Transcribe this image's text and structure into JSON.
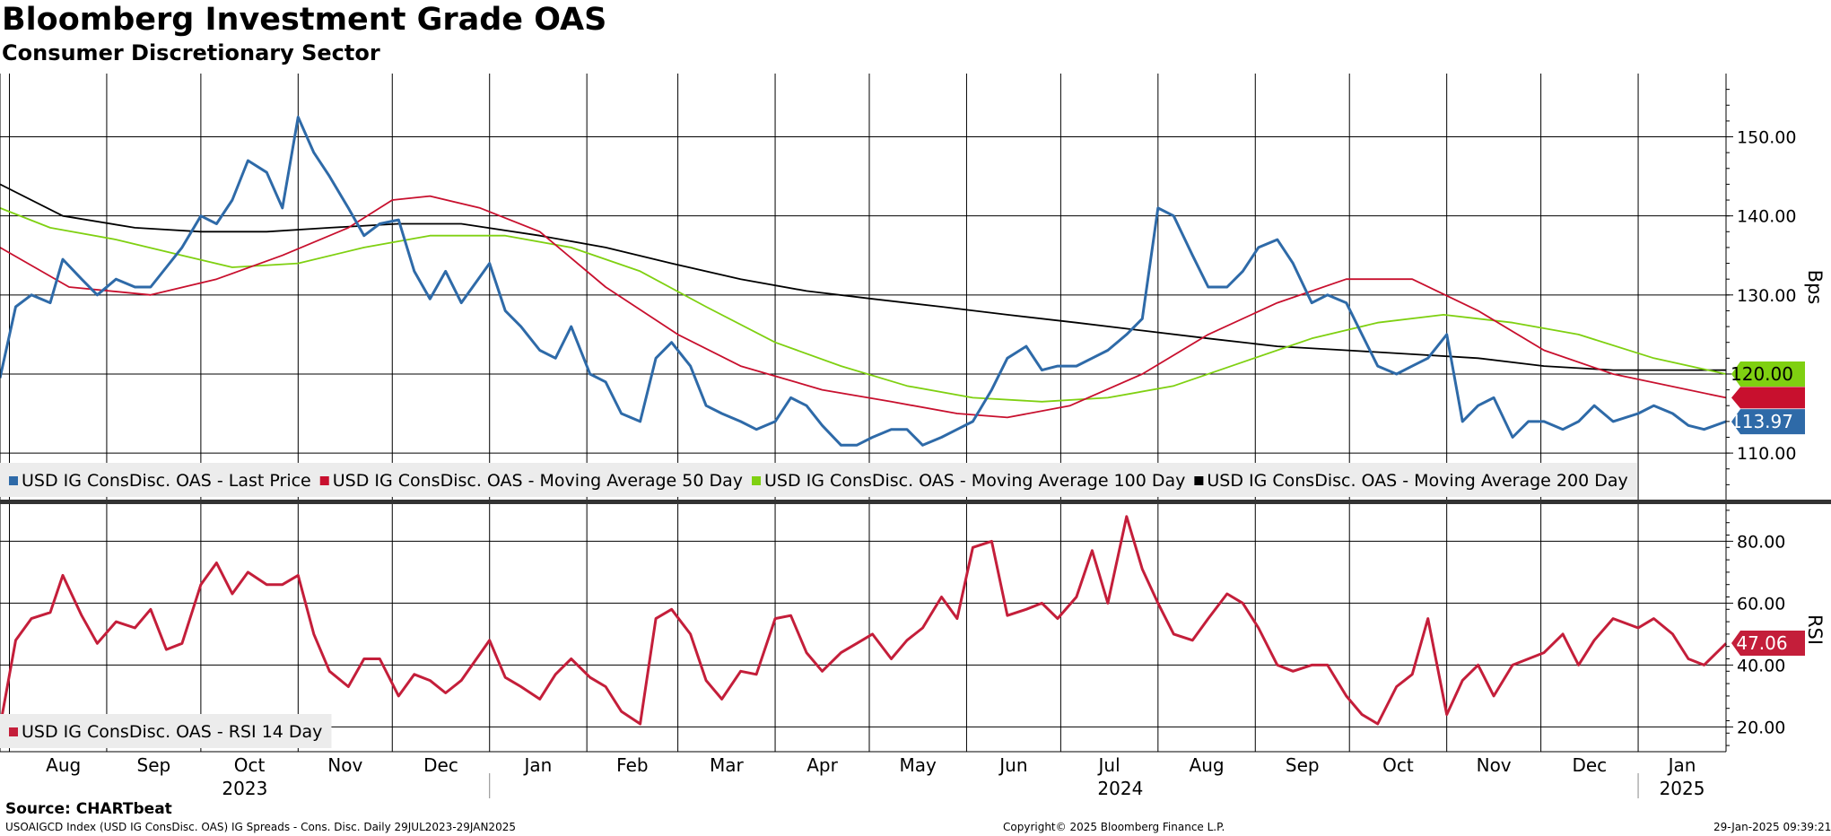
{
  "title": "Bloomberg Investment Grade OAS",
  "subtitle": "Consumer Discretionary Sector",
  "source": "Source: CHARTbeat",
  "footer": {
    "left": "USOAIGCD Index (USD IG ConsDisc. OAS) IG Spreads - Cons. Disc.  Daily 29JUL2023-29JAN2025",
    "center": "Copyright© 2025 Bloomberg Finance L.P.",
    "right": "29-Jan-2025 09:39:21"
  },
  "colors": {
    "last_price": "#2e6aa8",
    "ma50": "#c8102e",
    "ma100": "#7fd011",
    "ma200": "#000000",
    "rsi": "#c41e3a",
    "legend_bg": "#ececec"
  },
  "chart_data": [
    {
      "type": "line",
      "axis_label": "Bps",
      "ylim": [
        104,
        158
      ],
      "y_ticks": [
        "110.00",
        "120.00",
        "130.00",
        "140.00",
        "150.00"
      ],
      "x_month_labels": [
        "Aug",
        "Sep",
        "Oct",
        "Nov",
        "Dec",
        "Jan",
        "Feb",
        "Mar",
        "Apr",
        "May",
        "Jun",
        "Jul",
        "Aug",
        "Sep",
        "Oct",
        "Nov",
        "Dec",
        "Jan"
      ],
      "x_year_labels": [
        "2023",
        "2024",
        "2025"
      ],
      "x_range": [
        "2023-07-29",
        "2025-01-29"
      ],
      "grid": true,
      "legend": "bottom-left",
      "last_value_tags": [
        "120.00",
        "113.97"
      ],
      "series": [
        {
          "name": "USD IG ConsDisc. OAS - Last Price",
          "x": [
            "2023-07-29",
            "2023-08-03",
            "2023-08-08",
            "2023-08-14",
            "2023-08-18",
            "2023-08-24",
            "2023-08-29",
            "2023-09-04",
            "2023-09-10",
            "2023-09-15",
            "2023-09-20",
            "2023-09-25",
            "2023-10-01",
            "2023-10-06",
            "2023-10-11",
            "2023-10-16",
            "2023-10-22",
            "2023-10-27",
            "2023-11-01",
            "2023-11-06",
            "2023-11-11",
            "2023-11-17",
            "2023-11-22",
            "2023-11-27",
            "2023-12-03",
            "2023-12-08",
            "2023-12-13",
            "2023-12-18",
            "2023-12-23",
            "2024-01-01",
            "2024-01-06",
            "2024-01-11",
            "2024-01-17",
            "2024-01-22",
            "2024-01-27",
            "2024-02-02",
            "2024-02-07",
            "2024-02-12",
            "2024-02-18",
            "2024-02-23",
            "2024-02-28",
            "2024-03-05",
            "2024-03-10",
            "2024-03-15",
            "2024-03-21",
            "2024-03-26",
            "2024-04-01",
            "2024-04-06",
            "2024-04-11",
            "2024-04-16",
            "2024-04-22",
            "2024-04-27",
            "2024-05-02",
            "2024-05-08",
            "2024-05-13",
            "2024-05-18",
            "2024-05-24",
            "2024-05-29",
            "2024-06-03",
            "2024-06-09",
            "2024-06-14",
            "2024-06-20",
            "2024-06-25",
            "2024-06-30",
            "2024-07-06",
            "2024-07-11",
            "2024-07-16",
            "2024-07-22",
            "2024-07-27",
            "2024-08-01",
            "2024-08-06",
            "2024-08-12",
            "2024-08-17",
            "2024-08-23",
            "2024-08-28",
            "2024-09-02",
            "2024-09-08",
            "2024-09-13",
            "2024-09-19",
            "2024-09-24",
            "2024-09-30",
            "2024-10-05",
            "2024-10-10",
            "2024-10-16",
            "2024-10-21",
            "2024-10-26",
            "2024-11-01",
            "2024-11-06",
            "2024-11-11",
            "2024-11-16",
            "2024-11-22",
            "2024-11-27",
            "2024-12-02",
            "2024-12-08",
            "2024-12-13",
            "2024-12-18",
            "2024-12-24",
            "2025-01-01",
            "2025-01-06",
            "2025-01-12",
            "2025-01-17",
            "2025-01-22",
            "2025-01-29"
          ],
          "values": [
            119.5,
            128.5,
            130,
            129,
            134.5,
            132,
            130,
            132,
            131,
            131,
            133.5,
            136,
            140,
            139,
            142,
            147,
            145.5,
            141,
            152.5,
            148,
            145,
            141,
            137.5,
            139,
            139.5,
            133,
            129.5,
            133,
            129,
            134,
            128,
            126,
            123,
            122,
            126,
            120,
            119,
            115,
            114,
            122,
            124,
            121,
            116,
            115,
            114,
            113,
            114,
            117,
            116,
            113.5,
            111,
            111,
            112,
            113,
            113,
            111,
            112,
            113,
            114,
            118,
            122,
            123.5,
            120.5,
            121,
            121,
            122,
            123,
            125,
            127,
            141,
            140,
            135,
            131,
            131,
            133,
            136,
            137,
            134,
            129,
            130,
            129,
            125,
            121,
            120,
            121,
            122,
            125,
            114,
            116,
            117,
            112,
            114,
            114,
            113,
            114,
            116,
            114,
            115,
            116,
            115,
            113.5,
            113,
            114
          ]
        },
        {
          "name": "USD IG ConsDisc. OAS - Moving Average 50 Day",
          "x": [
            "2023-07-29",
            "2023-08-20",
            "2023-09-15",
            "2023-10-06",
            "2023-10-27",
            "2023-11-17",
            "2023-12-01",
            "2023-12-13",
            "2023-12-29",
            "2024-01-17",
            "2024-02-07",
            "2024-03-01",
            "2024-03-21",
            "2024-04-16",
            "2024-05-08",
            "2024-05-29",
            "2024-06-14",
            "2024-07-04",
            "2024-07-27",
            "2024-08-17",
            "2024-09-08",
            "2024-09-30",
            "2024-10-21",
            "2024-11-11",
            "2024-12-02",
            "2024-12-24",
            "2025-01-29"
          ],
          "values": [
            136,
            131,
            130,
            132,
            135,
            138.5,
            142,
            142.5,
            141,
            138,
            131,
            125,
            121,
            118,
            116.5,
            115,
            114.5,
            116,
            120,
            125,
            129,
            132,
            132,
            128,
            123,
            120,
            117
          ]
        },
        {
          "name": "USD IG ConsDisc. OAS - Moving Average 100 Day",
          "x": [
            "2023-07-29",
            "2023-08-14",
            "2023-09-04",
            "2023-09-25",
            "2023-10-11",
            "2023-11-01",
            "2023-11-22",
            "2023-12-13",
            "2024-01-06",
            "2024-01-27",
            "2024-02-18",
            "2024-03-10",
            "2024-04-01",
            "2024-04-22",
            "2024-05-13",
            "2024-06-03",
            "2024-06-25",
            "2024-07-16",
            "2024-08-06",
            "2024-08-28",
            "2024-09-19",
            "2024-10-10",
            "2024-10-31",
            "2024-11-22",
            "2024-12-13",
            "2025-01-06",
            "2025-01-29"
          ],
          "values": [
            141,
            138.5,
            137,
            135,
            133.5,
            134,
            136,
            137.5,
            137.5,
            136,
            133,
            128.5,
            124,
            121,
            118.5,
            117,
            116.5,
            117,
            118.5,
            121.5,
            124.5,
            126.5,
            127.5,
            126.5,
            125,
            122,
            120
          ]
        },
        {
          "name": "USD IG ConsDisc. OAS - Moving Average 200 Day",
          "x": [
            "2023-07-29",
            "2023-08-18",
            "2023-09-10",
            "2023-10-01",
            "2023-10-22",
            "2023-11-11",
            "2023-12-03",
            "2023-12-23",
            "2024-01-17",
            "2024-02-07",
            "2024-02-28",
            "2024-03-21",
            "2024-04-11",
            "2024-05-02",
            "2024-05-24",
            "2024-06-14",
            "2024-07-06",
            "2024-07-27",
            "2024-08-17",
            "2024-09-08",
            "2024-09-30",
            "2024-10-21",
            "2024-11-11",
            "2024-12-02",
            "2024-12-24",
            "2025-01-17",
            "2025-01-29"
          ],
          "values": [
            144,
            140,
            138.5,
            138,
            138,
            138.5,
            139,
            139,
            137.5,
            136,
            134,
            132,
            130.5,
            129.5,
            128.5,
            127.5,
            126.5,
            125.5,
            124.5,
            123.5,
            123,
            122.5,
            122,
            121,
            120.5,
            120.5,
            120.5
          ]
        }
      ]
    },
    {
      "type": "line",
      "axis_label": "RSI",
      "ylim": [
        12,
        92
      ],
      "y_ticks": [
        "20.00",
        "40.00",
        "60.00",
        "80.00"
      ],
      "grid": true,
      "legend": "bottom-left",
      "last_value_tags": [
        "47.06"
      ],
      "series": [
        {
          "name": "USD IG ConsDisc. OAS - RSI 14 Day",
          "x": [
            "2023-07-29",
            "2023-08-03",
            "2023-08-08",
            "2023-08-14",
            "2023-08-18",
            "2023-08-24",
            "2023-08-29",
            "2023-09-04",
            "2023-09-10",
            "2023-09-15",
            "2023-09-20",
            "2023-09-25",
            "2023-10-01",
            "2023-10-06",
            "2023-10-11",
            "2023-10-16",
            "2023-10-22",
            "2023-10-27",
            "2023-11-01",
            "2023-11-06",
            "2023-11-11",
            "2023-11-17",
            "2023-11-22",
            "2023-11-27",
            "2023-12-03",
            "2023-12-08",
            "2023-12-13",
            "2023-12-18",
            "2023-12-23",
            "2024-01-01",
            "2024-01-06",
            "2024-01-11",
            "2024-01-17",
            "2024-01-22",
            "2024-01-27",
            "2024-02-02",
            "2024-02-07",
            "2024-02-12",
            "2024-02-18",
            "2024-02-23",
            "2024-02-28",
            "2024-03-05",
            "2024-03-10",
            "2024-03-15",
            "2024-03-21",
            "2024-03-26",
            "2024-04-01",
            "2024-04-06",
            "2024-04-11",
            "2024-04-16",
            "2024-04-22",
            "2024-04-27",
            "2024-05-02",
            "2024-05-08",
            "2024-05-13",
            "2024-05-18",
            "2024-05-24",
            "2024-05-29",
            "2024-06-03",
            "2024-06-09",
            "2024-06-14",
            "2024-06-20",
            "2024-06-25",
            "2024-06-30",
            "2024-07-06",
            "2024-07-11",
            "2024-07-16",
            "2024-07-22",
            "2024-07-27",
            "2024-08-01",
            "2024-08-06",
            "2024-08-12",
            "2024-08-17",
            "2024-08-23",
            "2024-08-28",
            "2024-09-02",
            "2024-09-08",
            "2024-09-13",
            "2024-09-19",
            "2024-09-24",
            "2024-09-30",
            "2024-10-05",
            "2024-10-10",
            "2024-10-16",
            "2024-10-21",
            "2024-10-26",
            "2024-11-01",
            "2024-11-06",
            "2024-11-11",
            "2024-11-16",
            "2024-11-22",
            "2024-11-27",
            "2024-12-02",
            "2024-12-08",
            "2024-12-13",
            "2024-12-18",
            "2024-12-24",
            "2025-01-01",
            "2025-01-06",
            "2025-01-12",
            "2025-01-17",
            "2025-01-22",
            "2025-01-29"
          ],
          "values": [
            20,
            48,
            55,
            57,
            69,
            56,
            47,
            54,
            52,
            58,
            45,
            47,
            66,
            73,
            63,
            70,
            66,
            66,
            69,
            50,
            38,
            33,
            42,
            42,
            30,
            37,
            35,
            31,
            35,
            48,
            36,
            33,
            29,
            37,
            42,
            36,
            33,
            25,
            21,
            55,
            58,
            50,
            35,
            29,
            38,
            37,
            55,
            56,
            44,
            38,
            44,
            47,
            50,
            42,
            48,
            52,
            62,
            55,
            78,
            80,
            56,
            58,
            60,
            55,
            62,
            77,
            60,
            88,
            71,
            60,
            50,
            48,
            55,
            63,
            60,
            52,
            40,
            38,
            40,
            40,
            30,
            24,
            21,
            33,
            37,
            55,
            24,
            35,
            40,
            30,
            40,
            42,
            44,
            50,
            40,
            48,
            55,
            52,
            55,
            50,
            42,
            40,
            47
          ]
        }
      ]
    }
  ]
}
